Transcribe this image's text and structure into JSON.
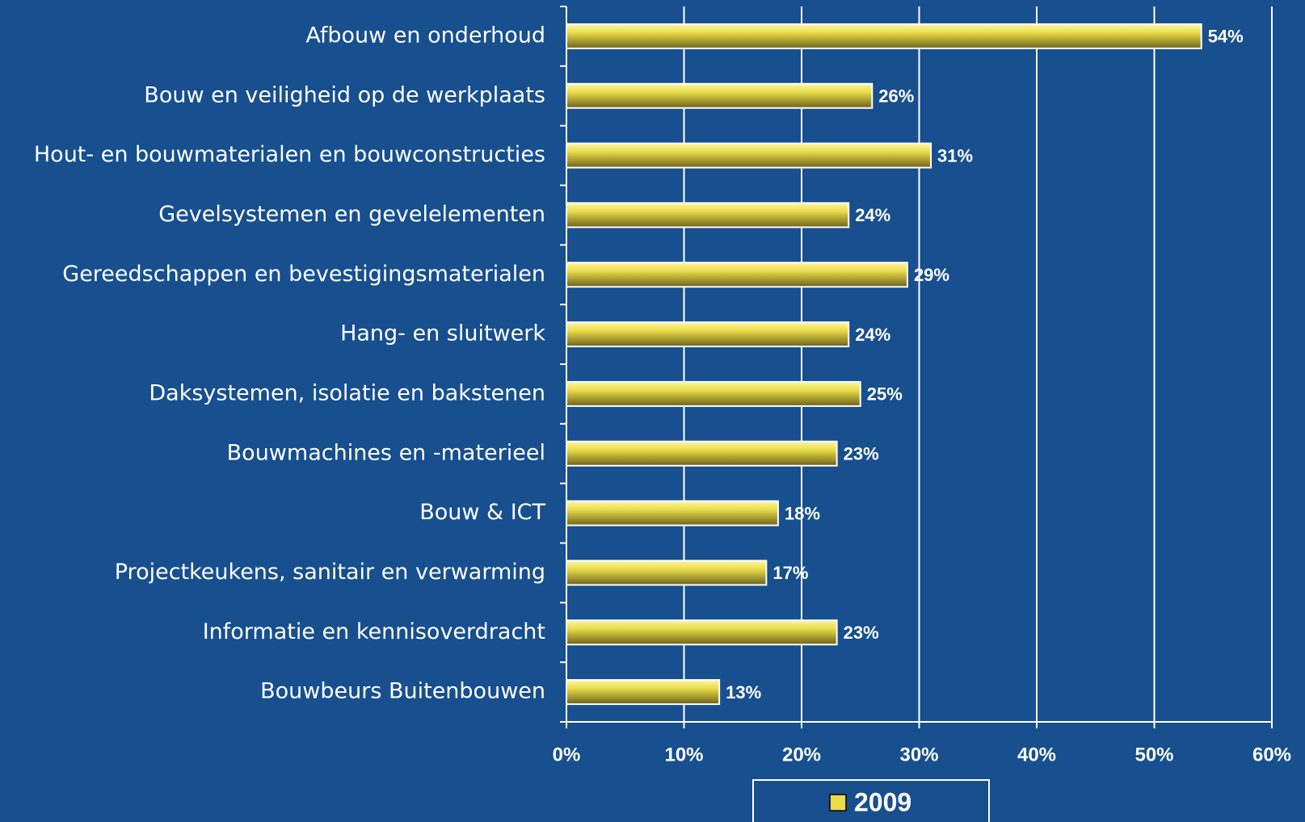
{
  "chart_data": {
    "type": "bar",
    "orientation": "horizontal",
    "categories": [
      "Afbouw en onderhoud",
      "Bouw en veiligheid op de werkplaats",
      "Hout- en bouwmaterialen en bouwconstructies",
      "Gevelsystemen en gevelelementen",
      "Gereedschappen en bevestigingsmaterialen",
      "Hang- en sluitwerk",
      "Daksystemen, isolatie en bakstenen",
      "Bouwmachines en -materieel",
      "Bouw & ICT",
      "Projectkeukens, sanitair en verwarming",
      "Informatie en kennisoverdracht",
      "Bouwbeurs Buitenbouwen"
    ],
    "series": [
      {
        "name": "2009",
        "color": "#e8dc4a",
        "values": [
          54,
          26,
          31,
          24,
          29,
          24,
          25,
          23,
          18,
          17,
          23,
          13
        ],
        "value_labels": [
          "54%",
          "26%",
          "31%",
          "24%",
          "29%",
          "24%",
          "25%",
          "23%",
          "18%",
          "17%",
          "23%",
          "13%"
        ]
      }
    ],
    "xlim": [
      0,
      60
    ],
    "xticks": [
      {
        "value": 0,
        "label": "0%"
      },
      {
        "value": 10,
        "label": "10%"
      },
      {
        "value": 20,
        "label": "20%"
      },
      {
        "value": 30,
        "label": "30%"
      },
      {
        "value": 40,
        "label": "40%"
      },
      {
        "value": 50,
        "label": "50%"
      },
      {
        "value": 60,
        "label": "60%"
      }
    ],
    "grid": true,
    "legend": "bottom"
  }
}
